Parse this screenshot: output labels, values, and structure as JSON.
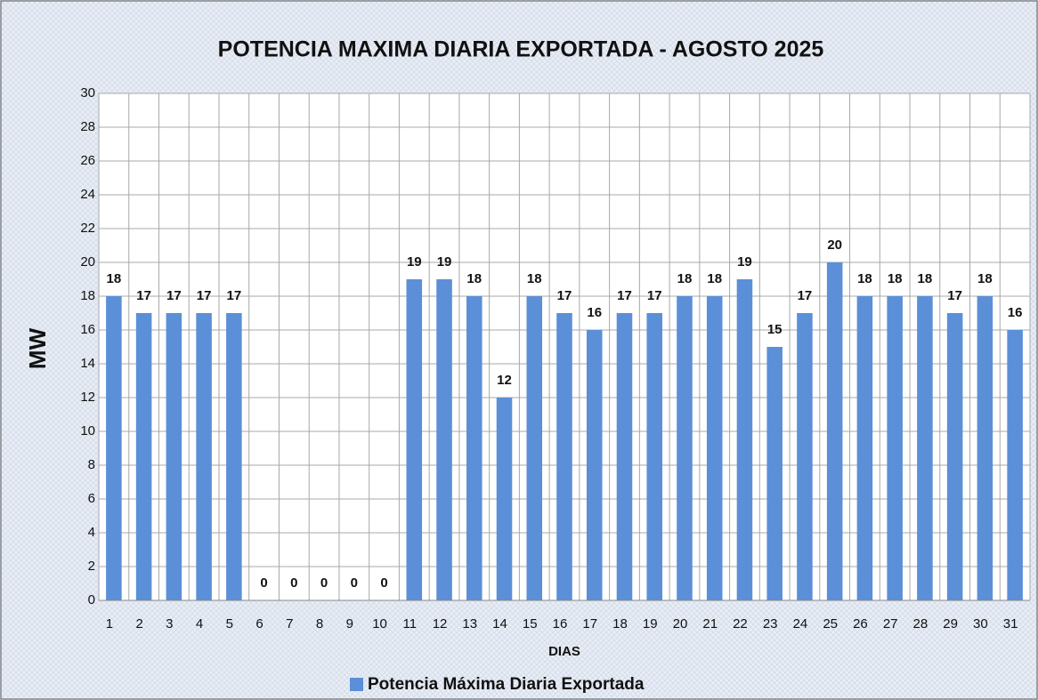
{
  "chart_data": {
    "type": "bar",
    "title": "POTENCIA MAXIMA DIARIA EXPORTADA - AGOSTO 2025",
    "x_label": "DIAS",
    "y_label": "MW",
    "categories": [
      "1",
      "2",
      "3",
      "4",
      "5",
      "6",
      "7",
      "8",
      "9",
      "10",
      "11",
      "12",
      "13",
      "14",
      "15",
      "16",
      "17",
      "18",
      "19",
      "20",
      "21",
      "22",
      "23",
      "24",
      "25",
      "26",
      "27",
      "28",
      "29",
      "30",
      "31"
    ],
    "series": [
      {
        "name": "Potencia Máxima Diaria Exportada",
        "color": "#5b8fd8",
        "values": [
          18,
          17,
          17,
          17,
          17,
          0,
          0,
          0,
          0,
          0,
          19,
          19,
          18,
          12,
          18,
          17,
          16,
          17,
          17,
          18,
          18,
          19,
          15,
          17,
          20,
          18,
          18,
          18,
          17,
          18,
          16
        ]
      }
    ],
    "ylim": [
      0,
      30
    ],
    "yticks": [
      0,
      2,
      4,
      6,
      8,
      10,
      12,
      14,
      16,
      18,
      20,
      22,
      24,
      26,
      28,
      30
    ],
    "grid": true,
    "legend": "bottom"
  }
}
